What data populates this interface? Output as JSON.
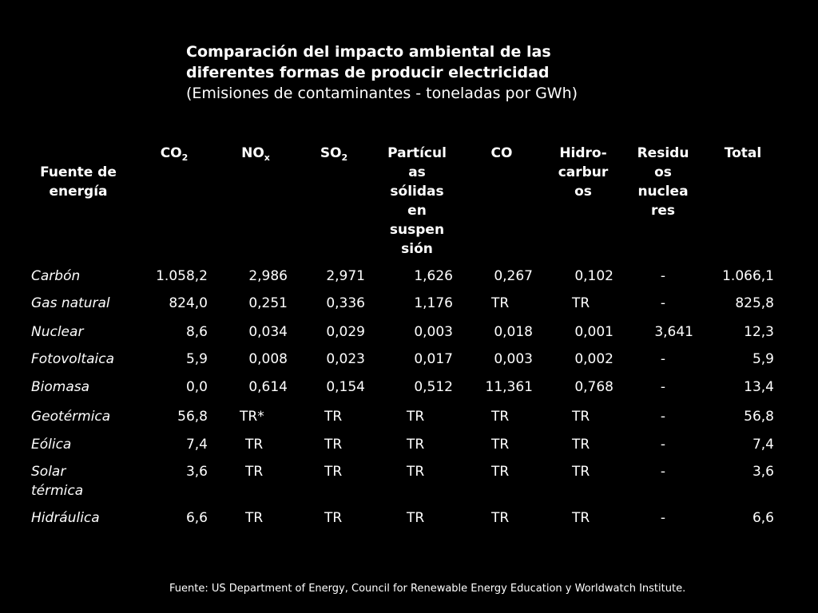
{
  "title": {
    "line1": "Comparación del impacto ambiental de las",
    "line2": "diferentes formas de producir electricidad",
    "subtitle": "(Emisiones de contaminantes - toneladas por GWh)"
  },
  "headers": {
    "source": [
      "Fuente de",
      "energía"
    ],
    "co2": {
      "base": "CO",
      "sub": "2"
    },
    "nox": {
      "base": "NO",
      "sub": "x"
    },
    "so2": {
      "base": "SO",
      "sub": "2"
    },
    "particulas": [
      "Partícul",
      "as",
      "sólidas",
      "en",
      "suspen",
      "sión"
    ],
    "co": "CO",
    "hidrocarburos": [
      "Hidro-",
      "carbur",
      "os"
    ],
    "residuos": [
      "Residu",
      "os",
      "nuclea",
      "res"
    ],
    "total": "Total"
  },
  "rows": [
    {
      "source": [
        "Carbón"
      ],
      "co2": "1.058,2",
      "nox": "2,986",
      "so2": "2,971",
      "part": "1,626",
      "co": "0,267",
      "hc": "0,102",
      "res": "-",
      "total": "1.066,1"
    },
    {
      "source": [
        "Gas natural"
      ],
      "co2": "824,0",
      "nox": "0,251",
      "so2": "0,336",
      "part": "1,176",
      "co": "TR",
      "hc": "TR",
      "res": "-",
      "total": "825,8"
    },
    {
      "source": [
        "Nuclear"
      ],
      "co2": "8,6",
      "nox": "0,034",
      "so2": "0,029",
      "part": "0,003",
      "co": "0,018",
      "hc": "0,001",
      "res": "3,641",
      "total": "12,3"
    },
    {
      "source": [
        "Fotovoltaica"
      ],
      "co2": "5,9",
      "nox": "0,008",
      "so2": "0,023",
      "part": "0,017",
      "co": "0,003",
      "hc": "0,002",
      "res": "-",
      "total": "5,9"
    },
    {
      "source": [
        "Biomasa"
      ],
      "co2": "0,0",
      "nox": "0,614",
      "so2": "0,154",
      "part": "0,512",
      "co": "11,361",
      "hc": "0,768",
      "res": "-",
      "total": "13,4"
    },
    {
      "source": [
        "Geotérmica"
      ],
      "co2": "56,8",
      "nox": "TR*",
      "so2": "TR",
      "part": "TR",
      "co": "TR",
      "hc": "TR",
      "res": "-",
      "total": "56,8"
    },
    {
      "source": [
        "Eólica"
      ],
      "co2": "7,4",
      "nox": "TR",
      "so2": "TR",
      "part": "TR",
      "co": "TR",
      "hc": "TR",
      "res": "-",
      "total": "7,4"
    },
    {
      "source": [
        "Solar",
        "térmica"
      ],
      "co2": "3,6",
      "nox": "TR",
      "so2": "TR",
      "part": "TR",
      "co": "TR",
      "hc": "TR",
      "res": "-",
      "total": "3,6"
    },
    {
      "source": [
        "Hidráulica"
      ],
      "co2": "6,6",
      "nox": "TR",
      "so2": "TR",
      "part": "TR",
      "co": "TR",
      "hc": "TR",
      "res": "-",
      "total": "6,6"
    }
  ],
  "footer": "Fuente: US Department of Energy, Council for Renewable Energy Education y Worldwatch Institute.",
  "colors": {
    "background": "#000000",
    "text": "#ffffff"
  }
}
